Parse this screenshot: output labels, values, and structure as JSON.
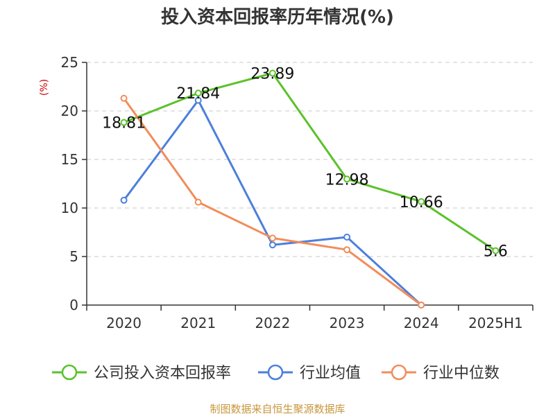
{
  "chart_data": {
    "type": "line",
    "title": "投入资本回报率历年情况(%)",
    "ylabel": "(%)",
    "categories": [
      "2020",
      "2021",
      "2022",
      "2023",
      "2024",
      "2025H1"
    ],
    "ylim": [
      0,
      25
    ],
    "yticks": [
      0,
      5,
      10,
      15,
      20,
      25
    ],
    "grid": true,
    "legend_position": "bottom",
    "series": [
      {
        "name": "公司投入资本回报率",
        "color": "#5ac229",
        "values": [
          18.81,
          21.84,
          23.89,
          12.98,
          10.66,
          5.6
        ],
        "labels": [
          "18.81",
          "21.84",
          "23.89",
          "12.98",
          "10.66",
          "5.6"
        ]
      },
      {
        "name": "行业均值",
        "color": "#4c7fdc",
        "values": [
          10.8,
          21.1,
          6.2,
          7.0,
          0.0,
          null
        ]
      },
      {
        "name": "行业中位数",
        "color": "#f28c5a",
        "values": [
          21.3,
          10.6,
          6.9,
          5.7,
          0.0,
          null
        ]
      }
    ]
  },
  "footer": {
    "source": "制图数据来自恒生聚源数据库"
  }
}
